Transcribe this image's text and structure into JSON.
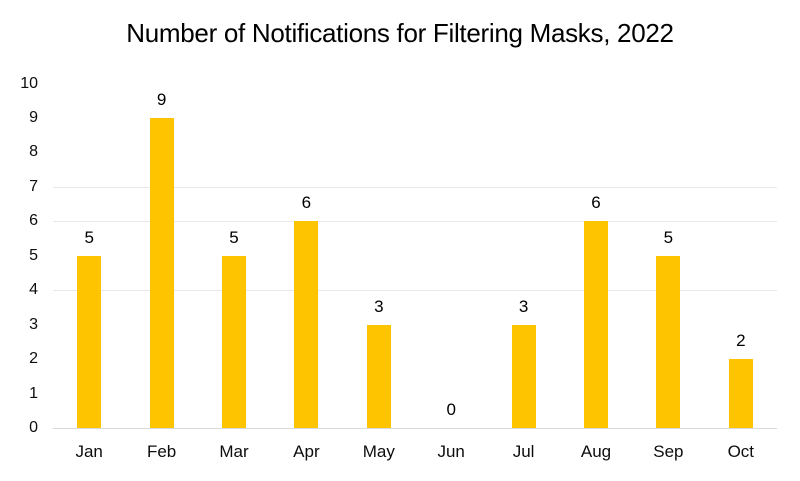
{
  "chart_data": {
    "type": "bar",
    "title": "Number of Notifications for Filtering Masks, 2022",
    "categories": [
      "Jan",
      "Feb",
      "Mar",
      "Apr",
      "May",
      "Jun",
      "Jul",
      "Aug",
      "Sep",
      "Oct"
    ],
    "values": [
      5,
      9,
      5,
      6,
      3,
      0,
      3,
      6,
      5,
      2
    ],
    "xlabel": "",
    "ylabel": "",
    "ylim": [
      0,
      10
    ],
    "y_ticks": [
      0,
      1,
      2,
      3,
      4,
      5,
      6,
      7,
      8,
      9,
      10
    ],
    "data_labels_shown": true,
    "legend": "none",
    "gridlines_visible_at": [
      4,
      6,
      7
    ],
    "colors": {
      "bar": "#FFC400",
      "gridline": "#e8e8e8",
      "axis_line": "#d9d9d9",
      "text": "#000000"
    }
  }
}
